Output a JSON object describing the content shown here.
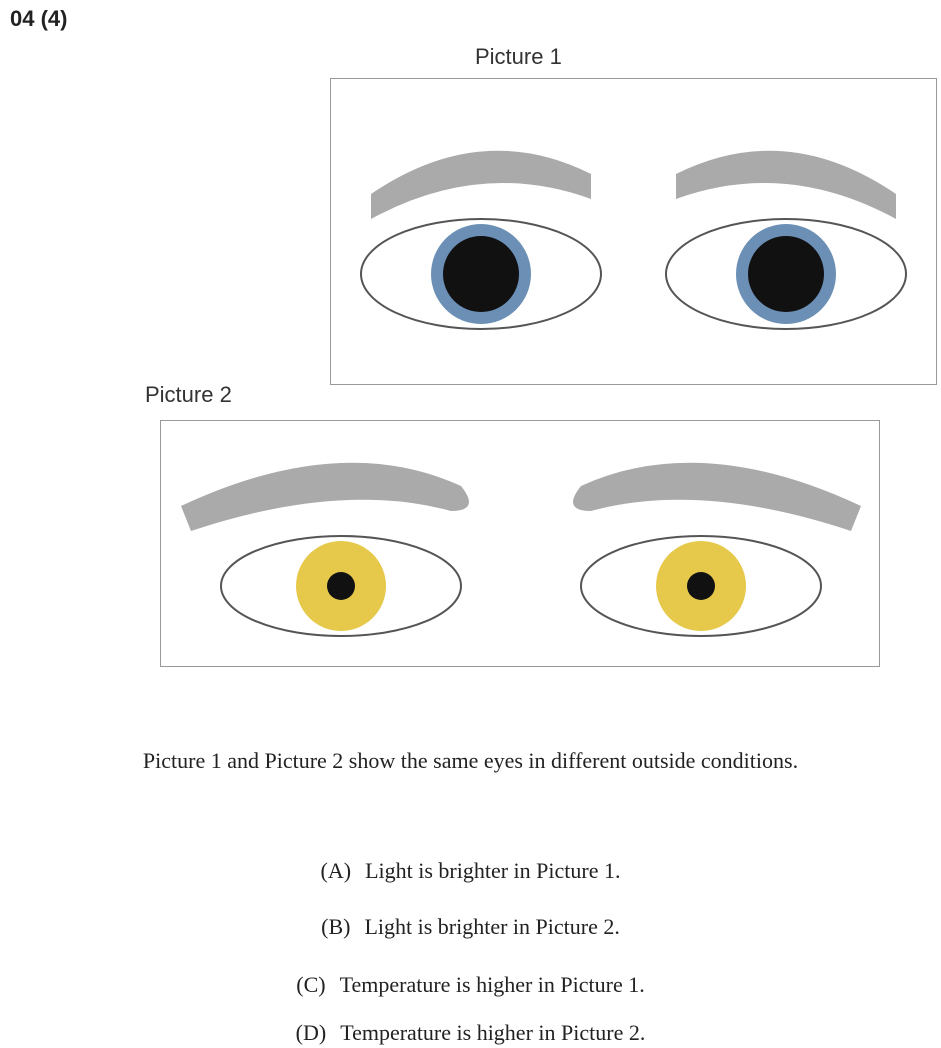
{
  "header": {
    "title": "04 (4)"
  },
  "pictures": [
    {
      "label": "Picture 1"
    },
    {
      "label": "Picture 2"
    }
  ],
  "question": {
    "text": "Picture 1 and Picture 2 show the same eyes in different outside conditions.",
    "options": [
      {
        "letter": "(A)",
        "text": "Light is brighter in Picture 1."
      },
      {
        "letter": "(B)",
        "text": "Light is brighter in Picture 2."
      },
      {
        "letter": "(C)",
        "text": "Temperature is higher in Picture 1."
      },
      {
        "letter": "(D)",
        "text": "Temperature is higher in Picture 2."
      }
    ]
  }
}
